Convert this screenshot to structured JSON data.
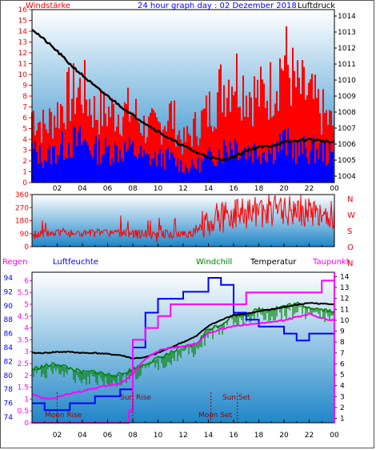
{
  "header": {
    "left_title": "Windstärke",
    "center_title": "24 hour graph day : 02 Dezember 2018",
    "right_title": "Luftdruck"
  },
  "bottom_header": {
    "regen": "Regen",
    "luftfeuchte": "Luftfeuchte",
    "windchill": "Windchill",
    "temperatur": "Temperatur",
    "taupunkt": "Taupunkt"
  },
  "wind_dir_letters": [
    "N",
    "W",
    "S",
    "O",
    "N"
  ],
  "events": {
    "moon_rise": "Moon Rise",
    "sun_rise": "Sun Rise",
    "sun_set": "Sun Set",
    "moon_set": "Moon Set"
  },
  "colors": {
    "wind_gust": "#ff0000",
    "wind_avg": "#0000ff",
    "pressure": "#000000",
    "direction": "#ff0000",
    "humidity": "#0000ff",
    "windchill": "#008000",
    "temperature": "#000000",
    "dewpoint": "#ff00ff",
    "title_left": "#ff0000",
    "title_center": "#0000ff",
    "humidity_axis": "#0000ff",
    "rain_axis": "#ff00ff",
    "background_top": "#ffffff",
    "background_bottom": "#1f86c8"
  },
  "chart_data": [
    {
      "type": "bar",
      "title": "Windstärke",
      "x_ticks": [
        "02",
        "04",
        "06",
        "08",
        "10",
        "12",
        "14",
        "16",
        "18",
        "20",
        "22",
        "00"
      ],
      "y_ticks_left": [
        0,
        1,
        2,
        3,
        4,
        5,
        6,
        7,
        8,
        9,
        10,
        11,
        12,
        13,
        14,
        15,
        16
      ],
      "ylim": [
        0,
        16
      ],
      "series": [
        {
          "name": "Gust",
          "hours": [
            0,
            1,
            2,
            3,
            4,
            5,
            6,
            7,
            8,
            9,
            10,
            11,
            12,
            13,
            14,
            15,
            16,
            17,
            18,
            19,
            20,
            21,
            22,
            23,
            24
          ],
          "values": [
            9,
            7,
            9,
            11,
            12,
            9,
            9,
            9,
            9,
            7,
            7,
            9,
            5,
            7,
            9,
            12,
            14,
            12,
            11,
            12,
            16,
            12,
            11,
            9,
            7
          ]
        },
        {
          "name": "Average",
          "hours": [
            0,
            1,
            2,
            3,
            4,
            5,
            6,
            7,
            8,
            9,
            10,
            11,
            12,
            13,
            14,
            15,
            16,
            17,
            18,
            19,
            20,
            21,
            22,
            23,
            24
          ],
          "values": [
            4,
            3,
            4,
            5,
            5,
            4,
            4,
            4,
            4,
            3,
            3,
            3,
            2,
            2,
            3,
            4,
            5,
            4,
            4,
            4,
            5,
            4,
            4,
            4,
            3
          ]
        }
      ]
    },
    {
      "type": "line",
      "title": "Luftdruck",
      "y_ticks_right": [
        1004,
        1005,
        1006,
        1007,
        1008,
        1009,
        1010,
        1011,
        1012,
        1013,
        1014
      ],
      "ylim": [
        1003.6,
        1014.4
      ],
      "x": [
        0,
        1,
        2,
        3,
        4,
        5,
        6,
        7,
        8,
        9,
        10,
        11,
        12,
        13,
        14,
        15,
        16,
        17,
        18,
        19,
        20,
        21,
        22,
        23,
        24
      ],
      "values": [
        1013.2,
        1012.5,
        1011.8,
        1011.0,
        1010.3,
        1009.6,
        1009.0,
        1008.4,
        1007.8,
        1007.3,
        1006.8,
        1006.3,
        1005.9,
        1005.5,
        1005.2,
        1005.0,
        1005.2,
        1005.6,
        1005.8,
        1005.9,
        1006.1,
        1006.2,
        1006.3,
        1006.2,
        1006.1
      ]
    },
    {
      "type": "line",
      "title": "Windrichtung",
      "y_ticks_left": [
        0,
        90,
        180,
        270,
        360
      ],
      "ylim": [
        0,
        360
      ],
      "x": [
        0,
        2,
        4,
        6,
        8,
        10,
        12,
        13,
        14,
        16,
        18,
        20,
        22,
        24
      ],
      "values": [
        80,
        100,
        90,
        95,
        90,
        85,
        90,
        100,
        180,
        220,
        240,
        250,
        240,
        230
      ]
    },
    {
      "type": "line",
      "title": "",
      "y_ticks_left_humidity": [
        74,
        76,
        78,
        80,
        82,
        84,
        86,
        88,
        90,
        92,
        94
      ],
      "y_ticks_rain": [
        0,
        0.5,
        1,
        1.5,
        2,
        2.5,
        3,
        3.5,
        4,
        4.5,
        5,
        5.5,
        6
      ],
      "y_ticks_temp": [
        1,
        2,
        3,
        4,
        5,
        6,
        7,
        8,
        9,
        10,
        11,
        12,
        13,
        14
      ],
      "temp_lim": [
        0.6,
        14.4
      ],
      "humidity_lim": [
        73.2,
        94.8
      ],
      "series": [
        {
          "name": "Luftfeuchte",
          "x": [
            0,
            1,
            2,
            3,
            4,
            5,
            6,
            7,
            8,
            9,
            10,
            11,
            12,
            13,
            14,
            15,
            16,
            17,
            18,
            19,
            20,
            21,
            22,
            23,
            24
          ],
          "values": [
            76,
            75,
            75,
            76,
            76,
            77,
            77,
            78,
            84,
            89,
            91,
            91,
            92,
            92,
            94,
            93,
            89,
            88,
            87,
            87,
            86,
            85,
            86,
            86,
            84
          ]
        },
        {
          "name": "Windchill",
          "x": [
            0,
            1,
            2,
            3,
            4,
            5,
            6,
            7,
            8,
            9,
            10,
            11,
            12,
            13,
            14,
            15,
            16,
            17,
            18,
            19,
            20,
            21,
            22,
            23,
            24
          ],
          "values": [
            5.5,
            5.8,
            6.0,
            5.6,
            5.2,
            5.3,
            5.0,
            5.0,
            5.5,
            6.0,
            6.5,
            7.0,
            7.5,
            7.8,
            9.2,
            9.6,
            10.5,
            10.5,
            11.0,
            11.0,
            11.3,
            11.5,
            11.2,
            11.0,
            10.8
          ]
        },
        {
          "name": "Temperatur",
          "x": [
            0,
            1,
            2,
            3,
            4,
            5,
            6,
            7,
            8,
            9,
            10,
            11,
            12,
            13,
            14,
            15,
            16,
            17,
            18,
            19,
            20,
            21,
            22,
            23,
            24
          ],
          "values": [
            7.0,
            7.0,
            7.1,
            7.1,
            7.0,
            7.0,
            6.9,
            6.8,
            6.5,
            6.6,
            7.0,
            7.5,
            8.0,
            8.5,
            9.5,
            10.0,
            10.5,
            10.6,
            10.8,
            11.0,
            11.2,
            11.4,
            11.6,
            11.5,
            11.5
          ]
        },
        {
          "name": "Taupunkt",
          "x": [
            0,
            1,
            2,
            3,
            4,
            5,
            6,
            7,
            8,
            9,
            10,
            11,
            12,
            13,
            14,
            15,
            16,
            17,
            18,
            19,
            20,
            21,
            22,
            23,
            24
          ],
          "values": [
            3.2,
            2.8,
            2.9,
            3.3,
            3.5,
            3.8,
            4.0,
            4.2,
            5.0,
            6.5,
            7.2,
            7.5,
            7.6,
            7.8,
            8.8,
            9.2,
            9.5,
            9.6,
            9.7,
            9.8,
            10.0,
            10.3,
            10.6,
            10.2,
            10.0
          ]
        },
        {
          "name": "Regen",
          "x": [
            0,
            7.6,
            7.7,
            8,
            9,
            10,
            11,
            12,
            13,
            14,
            15,
            16,
            17,
            18,
            19,
            20,
            21,
            22,
            23,
            24
          ],
          "values": [
            0,
            0,
            0.5,
            3.5,
            4.0,
            4.5,
            5.0,
            5.0,
            5.0,
            5.0,
            5.0,
            5.0,
            5.5,
            5.5,
            5.5,
            5.5,
            5.5,
            5.5,
            6.0,
            6.0
          ]
        }
      ]
    }
  ]
}
